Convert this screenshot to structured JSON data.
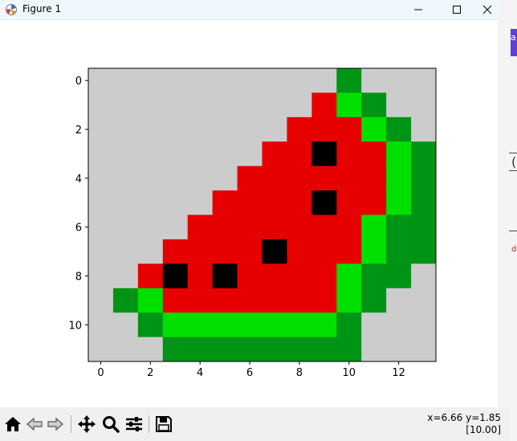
{
  "window": {
    "title": "Figure 1",
    "edge_accent_text": "a",
    "edge_mark_text": "(",
    "edge_red_text": "d"
  },
  "figure": {
    "x_ticks": [
      "0",
      "2",
      "4",
      "6",
      "8",
      "10",
      "12"
    ],
    "y_ticks": [
      "0",
      "2",
      "4",
      "6",
      "8",
      "10"
    ],
    "palette": {
      "0": "#cccccc",
      "1": "#009414",
      "2": "#00e000",
      "3": "#e60000",
      "4": "#000000"
    },
    "grid_values": [
      [
        0,
        0,
        0,
        0,
        0,
        0,
        0,
        0,
        0,
        0,
        1,
        0,
        0,
        0
      ],
      [
        0,
        0,
        0,
        0,
        0,
        0,
        0,
        0,
        0,
        3,
        2,
        1,
        0,
        0
      ],
      [
        0,
        0,
        0,
        0,
        0,
        0,
        0,
        0,
        3,
        3,
        3,
        2,
        1,
        0
      ],
      [
        0,
        0,
        0,
        0,
        0,
        0,
        0,
        3,
        3,
        4,
        3,
        3,
        2,
        1
      ],
      [
        0,
        0,
        0,
        0,
        0,
        0,
        3,
        3,
        3,
        3,
        3,
        3,
        2,
        1
      ],
      [
        0,
        0,
        0,
        0,
        0,
        3,
        3,
        3,
        3,
        4,
        3,
        3,
        2,
        1
      ],
      [
        0,
        0,
        0,
        0,
        3,
        3,
        3,
        3,
        3,
        3,
        3,
        2,
        1,
        1
      ],
      [
        0,
        0,
        0,
        3,
        3,
        3,
        3,
        4,
        3,
        3,
        3,
        2,
        1,
        1
      ],
      [
        0,
        0,
        3,
        4,
        3,
        4,
        3,
        3,
        3,
        3,
        2,
        1,
        1,
        0
      ],
      [
        0,
        1,
        2,
        3,
        3,
        3,
        3,
        3,
        3,
        3,
        2,
        1,
        0,
        0
      ],
      [
        0,
        0,
        1,
        2,
        2,
        2,
        2,
        2,
        2,
        2,
        1,
        0,
        0,
        0
      ],
      [
        0,
        0,
        0,
        1,
        1,
        1,
        1,
        1,
        1,
        1,
        1,
        0,
        0,
        0
      ]
    ]
  },
  "toolbar": {
    "buttons": [
      {
        "name": "home-button",
        "icon": "home-icon"
      },
      {
        "name": "back-button",
        "icon": "arrow-left-icon"
      },
      {
        "name": "forward-button",
        "icon": "arrow-right-icon"
      },
      {
        "name": "pan-button",
        "icon": "move-icon"
      },
      {
        "name": "zoom-button",
        "icon": "magnifier-icon"
      },
      {
        "name": "configure-subplots-button",
        "icon": "sliders-icon"
      },
      {
        "name": "save-button",
        "icon": "floppy-disk-icon"
      }
    ],
    "coords_text": "x=6.66 y=1.85",
    "value_text": "[10.00]"
  }
}
